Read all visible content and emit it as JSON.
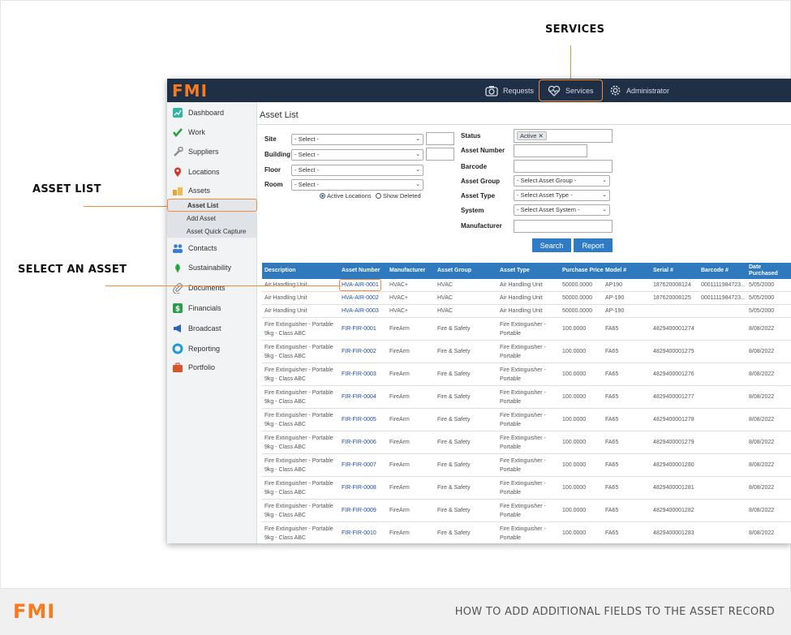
{
  "callouts": {
    "services": "SERVICES",
    "asset_list": "ASSET LIST",
    "select_asset": "SELECT AN ASSET"
  },
  "app": {
    "logo": "FMI",
    "nav": [
      {
        "label": "Requests",
        "icon": "camera-icon"
      },
      {
        "label": "Services",
        "icon": "heart-pulse-icon"
      },
      {
        "label": "Administrator",
        "icon": "gear-icon"
      }
    ]
  },
  "sidebar": {
    "items": [
      {
        "label": "Dashboard",
        "icon": "dashboard-icon"
      },
      {
        "label": "Work",
        "icon": "check-icon"
      },
      {
        "label": "Suppliers",
        "icon": "wrench-icon"
      },
      {
        "label": "Locations",
        "icon": "map-pin-icon"
      },
      {
        "label": "Assets",
        "icon": "boxes-icon"
      },
      {
        "label": "Contacts",
        "icon": "people-icon"
      },
      {
        "label": "Sustainability",
        "icon": "leaf-icon"
      },
      {
        "label": "Documents",
        "icon": "paperclip-icon"
      },
      {
        "label": "Financials",
        "icon": "dollar-icon"
      },
      {
        "label": "Broadcast",
        "icon": "megaphone-icon"
      },
      {
        "label": "Reporting",
        "icon": "chart-ring-icon"
      },
      {
        "label": "Portfolio",
        "icon": "briefcase-icon"
      }
    ],
    "submenu": [
      "Asset List",
      "Add Asset",
      "Asset Quick Capture"
    ]
  },
  "main": {
    "title": "Asset List",
    "filters": {
      "site_label": "Site",
      "building_label": "Building",
      "floor_label": "Floor",
      "room_label": "Room",
      "select_placeholder": "- Select -",
      "active_locations": "Active Locations",
      "show_deleted": "Show Deleted",
      "status_label": "Status",
      "status_value": "Active",
      "asset_number_label": "Asset Number",
      "barcode_label": "Barcode",
      "asset_group_label": "Asset Group",
      "asset_group_value": "- Select Asset Group -",
      "asset_type_label": "Asset Type",
      "asset_type_value": "- Select Asset Type -",
      "system_label": "System",
      "system_value": "- Select Asset System -",
      "manufacturer_label": "Manufacturer"
    },
    "buttons": {
      "search": "Search",
      "report": "Report"
    }
  },
  "table": {
    "headers": [
      "Description",
      "Asset Number",
      "Manufacturer",
      "Asset Group",
      "Asset Type",
      "Purchase Price",
      "Model #",
      "Serial #",
      "Barcode #",
      "Date Purchased"
    ],
    "rows": [
      [
        "Air Handling Unit",
        "HVA-AIR-0001",
        "HVAC+",
        "HVAC",
        "Air Handling Unit",
        "50000.0000",
        "AP190",
        "187620008124",
        "0001111984723...",
        "5/05/2000"
      ],
      [
        "Air Handling Unit",
        "HVA-AIR-0002",
        "HVAC+",
        "HVAC",
        "Air Handling Unit",
        "50000.0000",
        "AP-190",
        "187620008125",
        "0001111984723...",
        "5/05/2000"
      ],
      [
        "Air Handling Unit",
        "HVA-AIR-0003",
        "HVAC+",
        "HVAC",
        "Air Handling Unit",
        "50000.0000",
        "AP-190",
        "",
        "",
        "5/05/2000"
      ],
      [
        "Fire Extinguisher - Portable 9kg - Class ABC",
        "FIR-FIR-0001",
        "FireArm",
        "Fire & Safety",
        "Fire Extinguisher - Portable",
        "100.0000",
        "FA65",
        "4829400001274",
        "",
        "8/08/2022"
      ],
      [
        "Fire Extinguisher - Portable 9kg - Class ABC",
        "FIR-FIR-0002",
        "FireArm",
        "Fire & Safety",
        "Fire Extinguisher - Portable",
        "100.0000",
        "FA65",
        "4829400001275",
        "",
        "8/08/2022"
      ],
      [
        "Fire Extinguisher - Portable 9kg - Class ABC",
        "FIR-FIR-0003",
        "FireArm",
        "Fire & Safety",
        "Fire Extinguisher - Portable",
        "100.0000",
        "FA65",
        "4829400001276",
        "",
        "8/08/2022"
      ],
      [
        "Fire Extinguisher - Portable 9kg - Class ABC",
        "FIR-FIR-0004",
        "FireArm",
        "Fire & Safety",
        "Fire Extinguisher - Portable",
        "100.0000",
        "FA65",
        "4829400001277",
        "",
        "8/08/2022"
      ],
      [
        "Fire Extinguisher - Portable 9kg - Class ABC",
        "FIR-FIR-0005",
        "FireArm",
        "Fire & Safety",
        "Fire Extinguisher - Portable",
        "100.0000",
        "FA65",
        "4829400001278",
        "",
        "8/08/2022"
      ],
      [
        "Fire Extinguisher - Portable 9kg - Class ABC",
        "FIR-FIR-0006",
        "FireArm",
        "Fire & Safety",
        "Fire Extinguisher - Portable",
        "100.0000",
        "FA65",
        "4829400001279",
        "",
        "8/08/2022"
      ],
      [
        "Fire Extinguisher - Portable 9kg - Class ABC",
        "FIR-FIR-0007",
        "FireArm",
        "Fire & Safety",
        "Fire Extinguisher - Portable",
        "100.0000",
        "FA65",
        "4829400001280",
        "",
        "8/08/2022"
      ],
      [
        "Fire Extinguisher - Portable 9kg - Class ABC",
        "FIR-FIR-0008",
        "FireArm",
        "Fire & Safety",
        "Fire Extinguisher - Portable",
        "100.0000",
        "FA65",
        "4829400001281",
        "",
        "8/08/2022"
      ],
      [
        "Fire Extinguisher - Portable 9kg - Class ABC",
        "FIR-FIR-0009",
        "FireArm",
        "Fire & Safety",
        "Fire Extinguisher - Portable",
        "100.0000",
        "FA65",
        "4829400001282",
        "",
        "8/08/2022"
      ],
      [
        "Fire Extinguisher - Portable 9kg - Class ABC",
        "FIR-FIR-0010",
        "FireArm",
        "Fire & Safety",
        "Fire Extinguisher - Portable",
        "100.0000",
        "FA65",
        "4829400001283",
        "",
        "8/08/2022"
      ]
    ]
  },
  "footer": {
    "logo": "FMI",
    "title": "HOW TO ADD ADDITIONAL FIELDS TO THE ASSET RECORD"
  },
  "colors": {
    "accent": "#f08a3c",
    "topbar": "#1f2f45",
    "table_header": "#2f79be",
    "button": "#2f7bc6",
    "link": "#1d4fa3"
  }
}
